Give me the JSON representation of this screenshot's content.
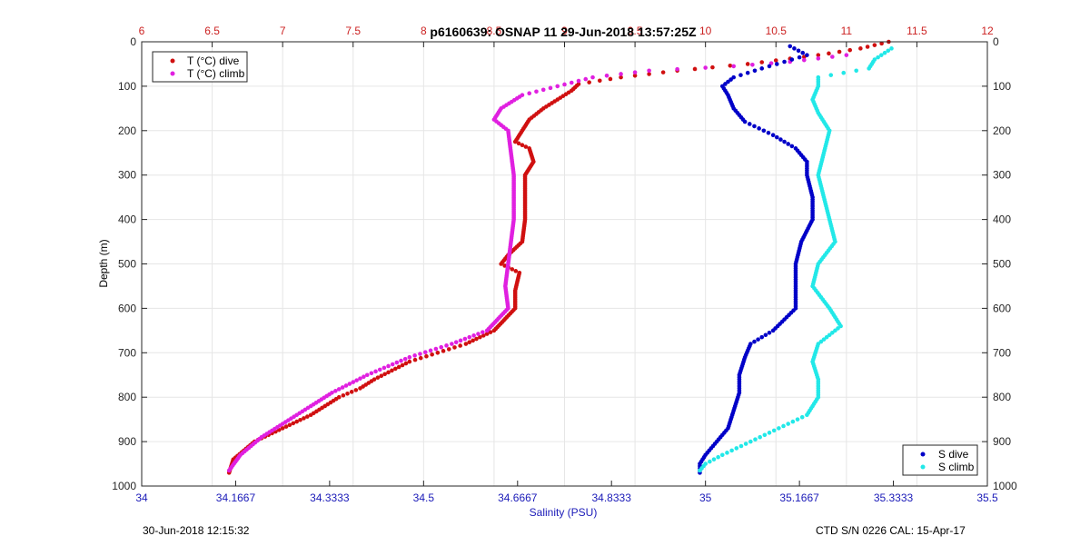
{
  "chart_data": {
    "type": "scatter",
    "title": "p6160639: OSNAP 11 29-Jun-2018 13:57:25Z",
    "ylabel": "Depth (m)",
    "xlabel_bottom": "Salinity (PSU)",
    "ylim": [
      0,
      1000
    ],
    "y_reversed": true,
    "yticks": [
      0,
      100,
      200,
      300,
      400,
      500,
      600,
      700,
      800,
      900,
      1000
    ],
    "x_bottom": {
      "range": [
        34,
        35.5
      ],
      "ticks": [
        34,
        34.1667,
        34.3333,
        34.5,
        34.6667,
        34.8333,
        35,
        35.1667,
        35.3333,
        35.5
      ],
      "tick_labels": [
        "34",
        "34.1667",
        "34.3333",
        "34.5",
        "34.6667",
        "34.8333",
        "35",
        "35.1667",
        "35.3333",
        "35.5"
      ],
      "color": "#1a1ab8"
    },
    "x_top": {
      "range": [
        6,
        12
      ],
      "ticks": [
        6,
        6.5,
        7,
        7.5,
        8,
        8.5,
        9,
        9.5,
        10,
        10.5,
        11,
        11.5,
        12
      ],
      "tick_labels": [
        "6",
        "6.5",
        "7",
        "7.5",
        "8",
        "8.5",
        "9",
        "9.5",
        "10",
        "10.5",
        "11",
        "11.5",
        "12"
      ],
      "color": "#cc2222"
    },
    "grid": true,
    "legend_top_left": [
      "T (°C) dive",
      "T (°C) climb"
    ],
    "legend_bottom_right": [
      "S dive",
      "S climb"
    ],
    "series": [
      {
        "name": "T (°C) dive",
        "axis": "top",
        "color": "#d01010",
        "points": [
          [
            11.3,
            0
          ],
          [
            11.1,
            15
          ],
          [
            10.8,
            30
          ],
          [
            10.3,
            50
          ],
          [
            9.8,
            65
          ],
          [
            9.4,
            80
          ],
          [
            9.1,
            95
          ],
          [
            9.05,
            110
          ],
          [
            8.95,
            130
          ],
          [
            8.85,
            150
          ],
          [
            8.75,
            175
          ],
          [
            8.7,
            200
          ],
          [
            8.65,
            225
          ],
          [
            8.75,
            240
          ],
          [
            8.78,
            270
          ],
          [
            8.72,
            300
          ],
          [
            8.72,
            350
          ],
          [
            8.72,
            400
          ],
          [
            8.7,
            450
          ],
          [
            8.6,
            480
          ],
          [
            8.55,
            500
          ],
          [
            8.68,
            520
          ],
          [
            8.65,
            560
          ],
          [
            8.65,
            600
          ],
          [
            8.5,
            650
          ],
          [
            8.3,
            680
          ],
          [
            8.1,
            700
          ],
          [
            7.9,
            720
          ],
          [
            7.65,
            760
          ],
          [
            7.55,
            780
          ],
          [
            7.4,
            800
          ],
          [
            7.2,
            840
          ],
          [
            7.0,
            870
          ],
          [
            6.8,
            900
          ],
          [
            6.65,
            940
          ],
          [
            6.62,
            970
          ]
        ]
      },
      {
        "name": "T (°C) climb",
        "axis": "top",
        "color": "#e020e0",
        "points": [
          [
            11.0,
            30
          ],
          [
            10.6,
            45
          ],
          [
            10.2,
            55
          ],
          [
            9.6,
            65
          ],
          [
            9.2,
            80
          ],
          [
            8.95,
            100
          ],
          [
            8.7,
            120
          ],
          [
            8.55,
            150
          ],
          [
            8.5,
            175
          ],
          [
            8.6,
            200
          ],
          [
            8.62,
            250
          ],
          [
            8.64,
            300
          ],
          [
            8.64,
            350
          ],
          [
            8.64,
            400
          ],
          [
            8.62,
            450
          ],
          [
            8.6,
            500
          ],
          [
            8.58,
            550
          ],
          [
            8.6,
            600
          ],
          [
            8.45,
            650
          ],
          [
            8.2,
            680
          ],
          [
            7.9,
            710
          ],
          [
            7.6,
            750
          ],
          [
            7.35,
            790
          ],
          [
            7.2,
            820
          ],
          [
            7.0,
            860
          ],
          [
            6.85,
            890
          ],
          [
            6.7,
            930
          ],
          [
            6.62,
            965
          ]
        ]
      },
      {
        "name": "S dive",
        "axis": "bottom",
        "color": "#0000c8",
        "points": [
          [
            35.15,
            10
          ],
          [
            35.18,
            30
          ],
          [
            35.1,
            60
          ],
          [
            35.05,
            80
          ],
          [
            35.03,
            100
          ],
          [
            35.04,
            120
          ],
          [
            35.05,
            150
          ],
          [
            35.07,
            180
          ],
          [
            35.12,
            210
          ],
          [
            35.16,
            240
          ],
          [
            35.18,
            270
          ],
          [
            35.18,
            300
          ],
          [
            35.19,
            350
          ],
          [
            35.19,
            400
          ],
          [
            35.17,
            450
          ],
          [
            35.16,
            500
          ],
          [
            35.16,
            550
          ],
          [
            35.16,
            600
          ],
          [
            35.12,
            650
          ],
          [
            35.08,
            680
          ],
          [
            35.07,
            710
          ],
          [
            35.06,
            750
          ],
          [
            35.06,
            790
          ],
          [
            35.05,
            830
          ],
          [
            35.04,
            870
          ],
          [
            35.02,
            900
          ],
          [
            35.0,
            930
          ],
          [
            34.99,
            950
          ],
          [
            34.99,
            970
          ]
        ]
      },
      {
        "name": "S climb",
        "axis": "bottom",
        "color": "#22e8e8",
        "points": [
          [
            35.33,
            15
          ],
          [
            35.3,
            40
          ],
          [
            35.29,
            60
          ],
          [
            35.2,
            80
          ],
          [
            35.2,
            100
          ],
          [
            35.19,
            130
          ],
          [
            35.2,
            160
          ],
          [
            35.22,
            200
          ],
          [
            35.21,
            250
          ],
          [
            35.2,
            300
          ],
          [
            35.21,
            350
          ],
          [
            35.22,
            400
          ],
          [
            35.23,
            450
          ],
          [
            35.2,
            500
          ],
          [
            35.19,
            550
          ],
          [
            35.22,
            600
          ],
          [
            35.24,
            640
          ],
          [
            35.2,
            680
          ],
          [
            35.19,
            720
          ],
          [
            35.2,
            760
          ],
          [
            35.2,
            800
          ],
          [
            35.18,
            840
          ],
          [
            35.13,
            870
          ],
          [
            35.08,
            900
          ],
          [
            35.03,
            930
          ],
          [
            35.0,
            950
          ],
          [
            34.99,
            965
          ]
        ]
      }
    ]
  },
  "footer": {
    "left": "30-Jun-2018 12:15:32",
    "right": "CTD S/N 0226  CAL: 15-Apr-17"
  }
}
